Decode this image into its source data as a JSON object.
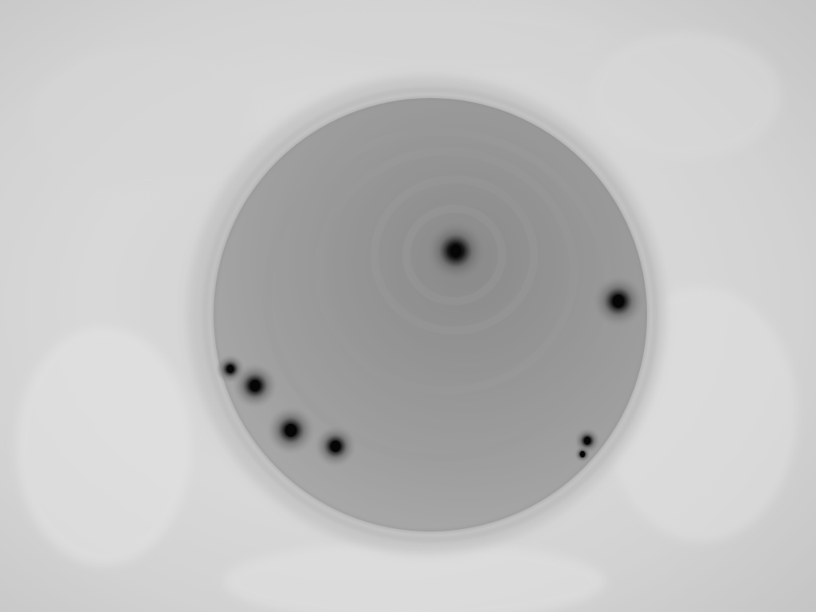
{
  "image": {
    "kind": "grayscale depth map",
    "colors": {
      "background_light": "#dedede",
      "background_mid": "#cdcdcd",
      "crater_rim": "#9a9a9a",
      "crater_floor_light": "#a9a9a9",
      "crater_floor_dark": "#8e8e8e",
      "spot_core": "#050505"
    },
    "spots": [
      {
        "label": "center-peak"
      },
      {
        "label": "right-edge"
      },
      {
        "label": "left-edge-1"
      },
      {
        "label": "left-edge-2"
      },
      {
        "label": "lower-left-1"
      },
      {
        "label": "lower-left-2"
      },
      {
        "label": "lower-right-1"
      },
      {
        "label": "lower-right-2"
      }
    ]
  }
}
